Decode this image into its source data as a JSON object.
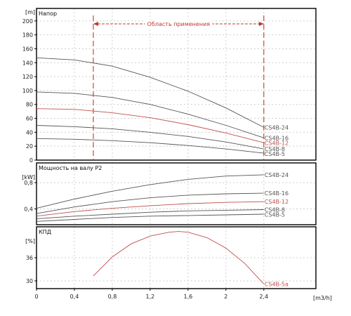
{
  "top_mark": "-",
  "chart_data": [
    {
      "type": "line",
      "panel": "head",
      "title": "Напор",
      "ylabel": "[m]",
      "xlabel": "[m3/h]",
      "x_ticks": [
        "0",
        "0,4",
        "0,8",
        "1,2",
        "1,6",
        "2",
        "2,4"
      ],
      "y_ticks": [
        "0",
        "20",
        "40",
        "60",
        "80",
        "100",
        "120",
        "140",
        "160",
        "180",
        "200"
      ],
      "xlim": [
        0,
        2.95
      ],
      "ylim": [
        0,
        218
      ],
      "grid": true,
      "application_range": {
        "label": "Область применения",
        "x_start": 0.6,
        "x_end": 2.4
      },
      "series": [
        {
          "name": "CS4B-24",
          "color": "#555555",
          "x": [
            0,
            0.4,
            0.8,
            1.2,
            1.6,
            2.0,
            2.4
          ],
          "y": [
            147,
            144,
            135,
            119,
            99,
            75,
            47
          ]
        },
        {
          "name": "CS4B-16",
          "color": "#555555",
          "x": [
            0,
            0.4,
            0.8,
            1.2,
            1.6,
            2.0,
            2.4
          ],
          "y": [
            98,
            96,
            90,
            80,
            66,
            50,
            32
          ]
        },
        {
          "name": "CS4B-12",
          "color": "#c0504d",
          "x": [
            0,
            0.4,
            0.8,
            1.2,
            1.6,
            2.0,
            2.4
          ],
          "y": [
            74,
            73,
            68,
            61,
            51,
            39,
            25
          ]
        },
        {
          "name": "CS4B-8",
          "color": "#555555",
          "x": [
            0,
            0.4,
            0.8,
            1.2,
            1.6,
            2.0,
            2.4
          ],
          "y": [
            50,
            48,
            45,
            40,
            34,
            26,
            16
          ]
        },
        {
          "name": "CS4B-5",
          "color": "#555555",
          "x": [
            0,
            0.4,
            0.8,
            1.2,
            1.6,
            2.0,
            2.4
          ],
          "y": [
            31,
            30,
            28,
            25,
            21,
            16,
            10
          ]
        }
      ]
    },
    {
      "type": "line",
      "panel": "power",
      "title": "Мощность на валу P2",
      "ylabel": "[kW]",
      "xlabel": "[m3/h]",
      "x_ticks": [
        "0",
        "0,4",
        "0,8",
        "1,2",
        "1,6",
        "2",
        "2,4"
      ],
      "y_ticks": [
        "0,4",
        "0,8"
      ],
      "xlim": [
        0,
        2.95
      ],
      "ylim": [
        0.16,
        1.1
      ],
      "grid": true,
      "series": [
        {
          "name": "CS4B-24",
          "color": "#555555",
          "x": [
            0,
            0.4,
            0.8,
            1.2,
            1.6,
            2.0,
            2.4
          ],
          "y": [
            0.41,
            0.55,
            0.67,
            0.77,
            0.85,
            0.9,
            0.92
          ]
        },
        {
          "name": "CS4B-16",
          "color": "#555555",
          "x": [
            0,
            0.4,
            0.8,
            1.2,
            1.6,
            2.0,
            2.4
          ],
          "y": [
            0.33,
            0.43,
            0.51,
            0.57,
            0.61,
            0.63,
            0.64
          ]
        },
        {
          "name": "CS4B-12",
          "color": "#c0504d",
          "x": [
            0,
            0.4,
            0.8,
            1.2,
            1.6,
            2.0,
            2.4
          ],
          "y": [
            0.29,
            0.36,
            0.41,
            0.45,
            0.48,
            0.5,
            0.51
          ]
        },
        {
          "name": "CS4B-8",
          "color": "#555555",
          "x": [
            0,
            0.4,
            0.8,
            1.2,
            1.6,
            2.0,
            2.4
          ],
          "y": [
            0.25,
            0.29,
            0.32,
            0.35,
            0.37,
            0.38,
            0.39
          ]
        },
        {
          "name": "CS4B-5",
          "color": "#555555",
          "x": [
            0,
            0.4,
            0.8,
            1.2,
            1.6,
            2.0,
            2.4
          ],
          "y": [
            0.21,
            0.24,
            0.27,
            0.29,
            0.3,
            0.31,
            0.32
          ]
        }
      ]
    },
    {
      "type": "line",
      "panel": "efficiency",
      "title": "КПД",
      "ylabel": "[%]",
      "xlabel": "[m3/h]",
      "x_ticks": [
        "0",
        "0,4",
        "0,8",
        "1,2",
        "1,6",
        "2",
        "2,4"
      ],
      "y_ticks": [
        "30",
        "36"
      ],
      "xlim": [
        0,
        2.95
      ],
      "ylim": [
        28,
        44
      ],
      "grid": true,
      "series": [
        {
          "name": "CS4B-5a",
          "color": "#c0504d",
          "x": [
            0.6,
            0.8,
            1.0,
            1.2,
            1.4,
            1.5,
            1.6,
            1.8,
            2.0,
            2.2,
            2.4
          ],
          "y": [
            31.3,
            36.2,
            39.6,
            41.6,
            42.6,
            42.8,
            42.6,
            41.2,
            38.5,
            34.5,
            29.2
          ]
        }
      ]
    }
  ]
}
